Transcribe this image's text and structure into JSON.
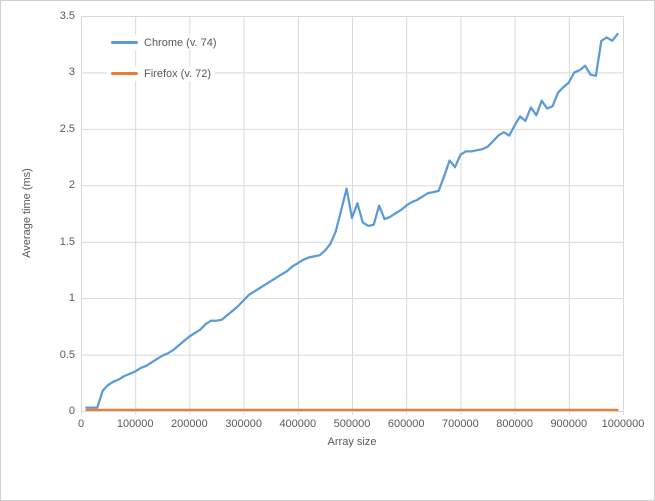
{
  "chart_data": {
    "type": "line",
    "title": "",
    "xlabel": "Array size",
    "ylabel": "Average time (ms)",
    "xlim": [
      0,
      1000000
    ],
    "ylim": [
      0,
      3.5
    ],
    "grid": "on",
    "legend_position": "top-left-overlay",
    "x_tick_labels": [
      "0",
      "100000",
      "200000",
      "300000",
      "400000",
      "500000",
      "600000",
      "700000",
      "800000",
      "900000",
      "1000000"
    ],
    "x_ticks": [
      0,
      100000,
      200000,
      300000,
      400000,
      500000,
      600000,
      700000,
      800000,
      900000,
      1000000
    ],
    "y_tick_labels": [
      "0",
      "0.5",
      "1",
      "1.5",
      "2",
      "2.5",
      "3",
      "3.5"
    ],
    "y_ticks": [
      0,
      0.5,
      1,
      1.5,
      2,
      2.5,
      3,
      3.5
    ],
    "x": [
      10000,
      20000,
      30000,
      40000,
      50000,
      60000,
      70000,
      80000,
      90000,
      100000,
      110000,
      120000,
      130000,
      140000,
      150000,
      160000,
      170000,
      180000,
      190000,
      200000,
      210000,
      220000,
      230000,
      240000,
      250000,
      260000,
      270000,
      280000,
      290000,
      300000,
      310000,
      320000,
      330000,
      340000,
      350000,
      360000,
      370000,
      380000,
      390000,
      400000,
      410000,
      420000,
      430000,
      440000,
      450000,
      460000,
      470000,
      480000,
      490000,
      500000,
      510000,
      520000,
      530000,
      540000,
      550000,
      560000,
      570000,
      580000,
      590000,
      600000,
      610000,
      620000,
      630000,
      640000,
      650000,
      660000,
      670000,
      680000,
      690000,
      700000,
      710000,
      720000,
      730000,
      740000,
      750000,
      760000,
      770000,
      780000,
      790000,
      800000,
      810000,
      820000,
      830000,
      840000,
      850000,
      860000,
      870000,
      880000,
      890000,
      900000,
      910000,
      920000,
      930000,
      940000,
      950000,
      960000,
      970000,
      980000,
      990000
    ],
    "series": [
      {
        "name": "Chrome (v. 74)",
        "color": "#5B9BD5",
        "values": [
          0.03,
          0.03,
          0.03,
          0.18,
          0.23,
          0.26,
          0.28,
          0.31,
          0.33,
          0.35,
          0.38,
          0.4,
          0.43,
          0.46,
          0.49,
          0.51,
          0.54,
          0.58,
          0.62,
          0.66,
          0.69,
          0.72,
          0.77,
          0.8,
          0.8,
          0.81,
          0.85,
          0.89,
          0.93,
          0.98,
          1.03,
          1.06,
          1.09,
          1.12,
          1.15,
          1.18,
          1.21,
          1.24,
          1.28,
          1.31,
          1.34,
          1.36,
          1.37,
          1.38,
          1.42,
          1.48,
          1.59,
          1.78,
          1.97,
          1.71,
          1.84,
          1.67,
          1.64,
          1.65,
          1.82,
          1.7,
          1.72,
          1.75,
          1.78,
          1.82,
          1.85,
          1.87,
          1.9,
          1.93,
          1.94,
          1.95,
          2.08,
          2.22,
          2.16,
          2.27,
          2.3,
          2.3,
          2.31,
          2.32,
          2.34,
          2.39,
          2.44,
          2.47,
          2.44,
          2.53,
          2.61,
          2.57,
          2.69,
          2.62,
          2.75,
          2.68,
          2.7,
          2.82,
          2.87,
          2.91,
          3.0,
          3.02,
          3.06,
          2.98,
          2.97,
          3.28,
          3.31,
          3.28,
          3.34
        ]
      },
      {
        "name": "Firefox (v. 72)",
        "color": "#ED7D31",
        "values": [
          0.01,
          0.01,
          0.01,
          0.01,
          0.01,
          0.01,
          0.01,
          0.01,
          0.01,
          0.01,
          0.01,
          0.01,
          0.01,
          0.01,
          0.01,
          0.01,
          0.01,
          0.01,
          0.01,
          0.01,
          0.01,
          0.01,
          0.01,
          0.01,
          0.01,
          0.01,
          0.01,
          0.01,
          0.01,
          0.01,
          0.01,
          0.01,
          0.01,
          0.01,
          0.01,
          0.01,
          0.01,
          0.01,
          0.01,
          0.01,
          0.01,
          0.01,
          0.01,
          0.01,
          0.01,
          0.01,
          0.01,
          0.01,
          0.01,
          0.01,
          0.01,
          0.01,
          0.01,
          0.01,
          0.01,
          0.01,
          0.01,
          0.01,
          0.01,
          0.01,
          0.01,
          0.01,
          0.01,
          0.01,
          0.01,
          0.01,
          0.01,
          0.01,
          0.01,
          0.01,
          0.01,
          0.01,
          0.01,
          0.01,
          0.01,
          0.01,
          0.01,
          0.01,
          0.01,
          0.01,
          0.01,
          0.01,
          0.01,
          0.01,
          0.01,
          0.01,
          0.01,
          0.01,
          0.01,
          0.01,
          0.01,
          0.01,
          0.01,
          0.01,
          0.01,
          0.01,
          0.01,
          0.01,
          0.01
        ]
      }
    ]
  },
  "colors": {
    "gridline": "#D9D9D9",
    "axis_text": "#595959",
    "chart_border": "#D0D0D0",
    "background": "#FFFFFF"
  }
}
